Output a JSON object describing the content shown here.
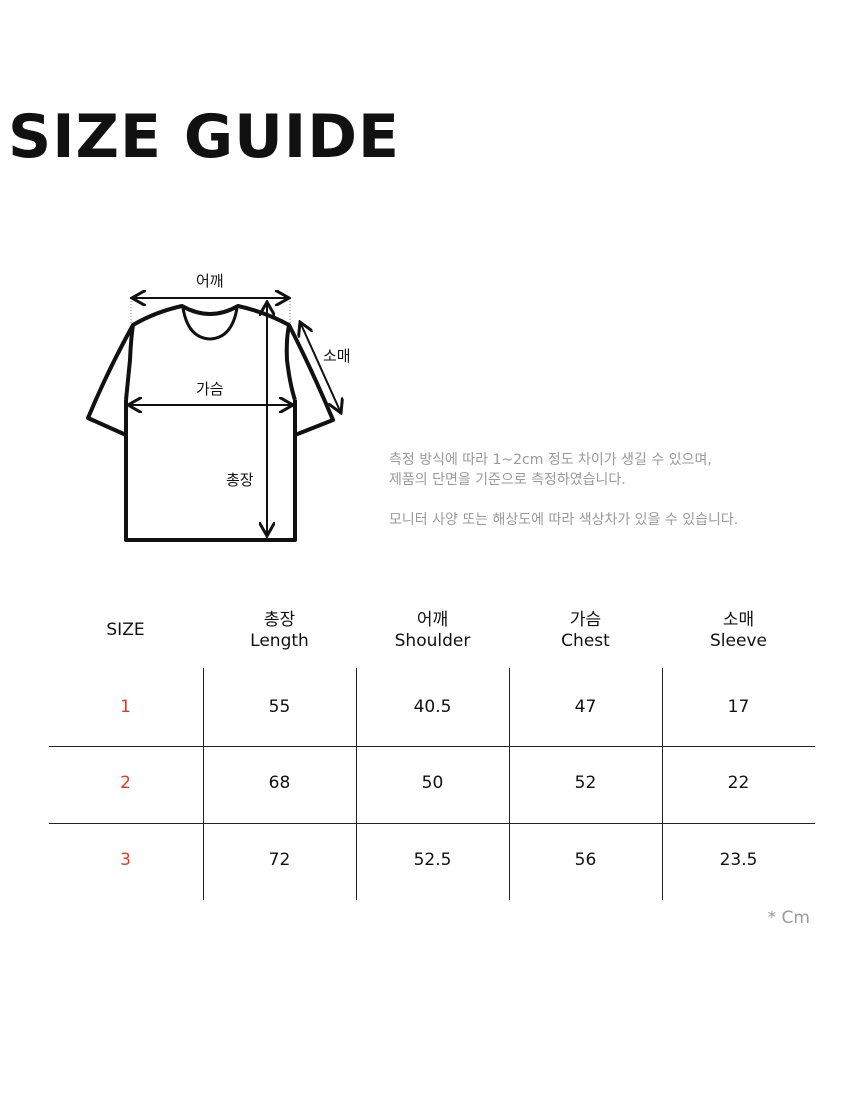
{
  "title": "SIZE GUIDE",
  "diagram": {
    "shoulder": "어깨",
    "sleeve": "소매",
    "chest": "가슴",
    "length": "총장"
  },
  "notes": [
    "측정 방식에 따라 1~2cm 정도 차이가 생길 수 있으며,",
    "제품의 단면을 기준으로 측정하였습니다.",
    "모니터 사양 또는 해상도에 따라 색상차가 있을 수 있습니다."
  ],
  "table": {
    "headers": [
      {
        "ko": "",
        "en": "SIZE"
      },
      {
        "ko": "총장",
        "en": "Length"
      },
      {
        "ko": "어깨",
        "en": "Shoulder"
      },
      {
        "ko": "가슴",
        "en": "Chest"
      },
      {
        "ko": "소매",
        "en": "Sleeve"
      }
    ],
    "rows": [
      [
        "1",
        "55",
        "40.5",
        "47",
        "17"
      ],
      [
        "2",
        "68",
        "50",
        "52",
        "22"
      ],
      [
        "3",
        "72",
        "52.5",
        "56",
        "23.5"
      ]
    ],
    "size_color": "#e8381c"
  },
  "unit": "* Cm"
}
